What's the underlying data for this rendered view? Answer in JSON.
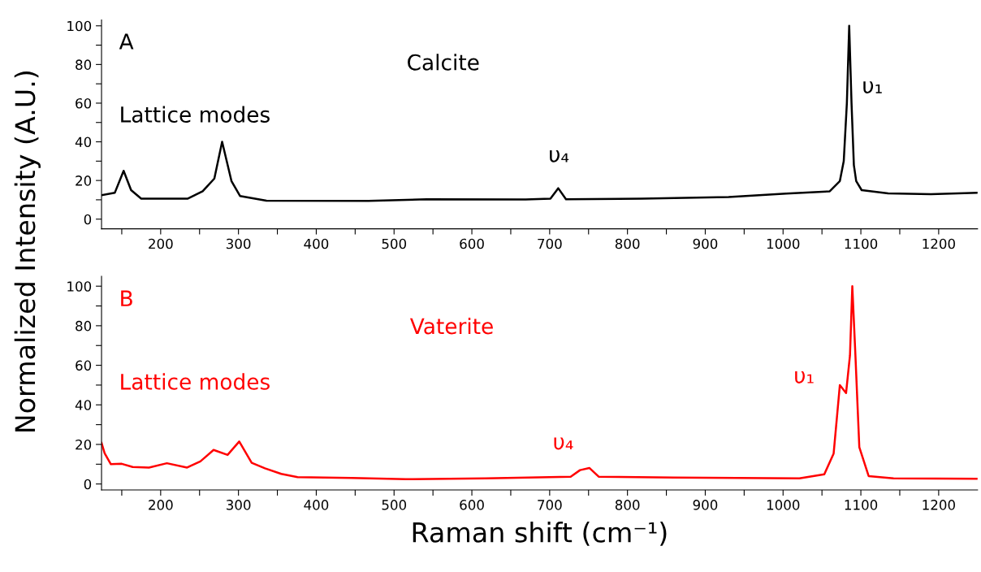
{
  "chart_data": [
    {
      "type": "line",
      "title": "Calcite",
      "ylabel": "Normalized Intensity (A.U.)",
      "annotations": [
        "A",
        "Lattice modes",
        "υ₄",
        "υ₁"
      ],
      "series": [
        {
          "color": "#000000",
          "x": [
            124,
            141,
            152.4,
            162,
            175,
            235,
            254,
            269,
            279,
            291,
            302,
            336,
            467,
            542,
            669,
            701,
            711,
            721,
            818,
            930,
            1004,
            1060,
            1073,
            1078,
            1082,
            1085,
            1088,
            1091,
            1094,
            1101,
            1135,
            1190,
            1249
          ],
          "values": [
            12.4,
            13.6,
            25,
            15,
            10.6,
            10.6,
            14.4,
            21,
            40,
            19.7,
            12,
            9.5,
            9.4,
            10.3,
            10.2,
            10.6,
            16,
            10.3,
            10.6,
            11.4,
            13.2,
            14.4,
            19.7,
            30,
            60,
            100,
            60,
            28,
            19.7,
            15,
            13.3,
            12.9,
            13.6
          ]
        }
      ],
      "xlim": [
        124,
        1250
      ],
      "ylim": [
        -5,
        103
      ],
      "xticks": [
        {
          "value": 150,
          "label": null
        },
        200,
        {
          "value": 250,
          "label": null
        },
        300,
        {
          "value": 350,
          "label": null
        },
        400,
        {
          "value": 450,
          "label": null
        },
        500,
        {
          "value": 550,
          "label": null
        },
        600,
        {
          "value": 650,
          "label": null
        },
        700,
        {
          "value": 750,
          "label": null
        },
        800,
        {
          "value": 850,
          "label": null
        },
        900,
        {
          "value": 950,
          "label": null
        },
        1000,
        {
          "value": 1050,
          "label": null
        },
        1100,
        {
          "value": 1150,
          "label": null
        },
        1200
      ],
      "yticks": [
        0,
        {
          "value": 10,
          "label": null
        },
        20,
        {
          "value": 30,
          "label": null
        },
        40,
        {
          "value": 50,
          "label": null
        },
        60,
        {
          "value": 70,
          "label": null
        },
        80,
        {
          "value": 90,
          "label": null
        },
        100
      ],
      "grid": false,
      "legend": false
    },
    {
      "type": "line",
      "title": "Vaterite",
      "xlabel": "Raman shift (cm⁻¹)",
      "annotations": [
        "B",
        "Lattice modes",
        "υ₄",
        "υ₁"
      ],
      "series": [
        {
          "color": "#ff0000",
          "x": [
            124,
            128,
            136,
            150,
            164,
            185,
            208,
            234,
            251,
            268,
            286,
            301,
            317,
            334,
            355,
            376,
            445,
            515,
            618,
            727,
            739,
            751,
            763,
            860,
            1021,
            1053,
            1065,
            1073,
            1081,
            1086,
            1089,
            1093,
            1098,
            1110,
            1142,
            1250
          ],
          "values": [
            20.8,
            15.5,
            10,
            10.2,
            8.6,
            8.3,
            10.5,
            8.3,
            11.4,
            17.2,
            14.7,
            21.5,
            10.7,
            7.9,
            5.1,
            3.5,
            3,
            2.4,
            2.8,
            3.7,
            7.0,
            8.1,
            3.7,
            3.3,
            2.8,
            4.9,
            15.4,
            50,
            46,
            65,
            100,
            65,
            18.6,
            4,
            2.8,
            2.6
          ]
        }
      ],
      "xlim": [
        124,
        1250
      ],
      "ylim": [
        -3,
        105
      ],
      "xticks": [
        {
          "value": 150,
          "label": null
        },
        200,
        {
          "value": 250,
          "label": null
        },
        300,
        {
          "value": 350,
          "label": null
        },
        400,
        {
          "value": 450,
          "label": null
        },
        500,
        {
          "value": 550,
          "label": null
        },
        600,
        {
          "value": 650,
          "label": null
        },
        700,
        {
          "value": 750,
          "label": null
        },
        800,
        {
          "value": 850,
          "label": null
        },
        900,
        {
          "value": 950,
          "label": null
        },
        1000,
        {
          "value": 1050,
          "label": null
        },
        1100,
        {
          "value": 1150,
          "label": null
        },
        1200
      ],
      "yticks": [
        0,
        {
          "value": 10,
          "label": null
        },
        20,
        {
          "value": 30,
          "label": null
        },
        40,
        {
          "value": 50,
          "label": null
        },
        60,
        {
          "value": 70,
          "label": null
        },
        80,
        {
          "value": 90,
          "label": null
        },
        100
      ],
      "grid": false,
      "legend": false
    }
  ]
}
